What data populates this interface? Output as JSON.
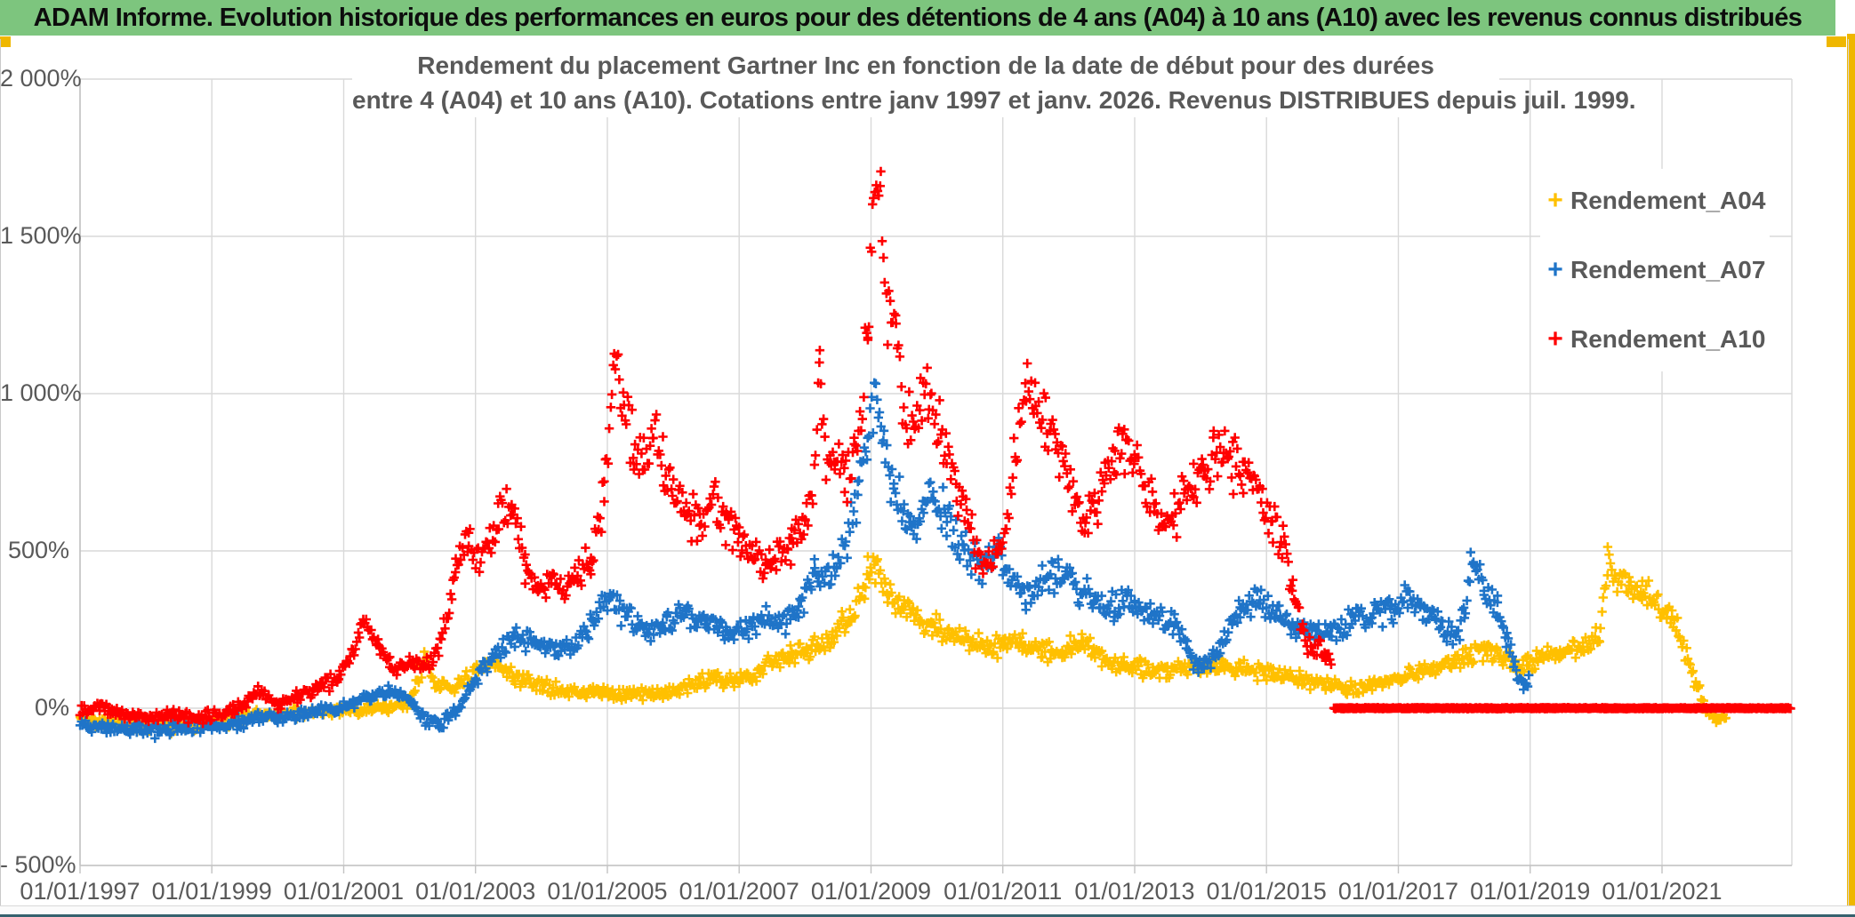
{
  "header": {
    "title": "ADAM Informe. Evolution historique des performances en euros pour des détentions de 4 ans (A04) à 10 ans (A10) avec les revenus connus distribués",
    "background_color": "#7DC57E"
  },
  "frame": {
    "accent_color": "#EFB700",
    "bottom_bar_color": "#35616E"
  },
  "chart": {
    "title_line1": "Rendement du placement Gartner Inc en fonction de la date de début pour des durées",
    "title_line2": "entre 4 (A04) et 10 ans (A10). Cotations entre janv 1997 et janv. 2026. Revenus DISTRIBUES depuis juil. 1999.",
    "legend": [
      {
        "label": "Rendement_A04",
        "color": "#FFC000"
      },
      {
        "label": "Rendement_A07",
        "color": "#1F74C8"
      },
      {
        "label": "Rendement_A10",
        "color": "#FF0000"
      }
    ]
  },
  "chart_data": {
    "type": "scatter",
    "marker": "plus",
    "grid": true,
    "legend_position": "right",
    "x_axis": {
      "min": 1997.0,
      "max": 2022.97,
      "tick_years": [
        1997,
        1999,
        2001,
        2003,
        2005,
        2007,
        2009,
        2011,
        2013,
        2015,
        2017,
        2019,
        2021
      ],
      "tick_labels": [
        "01/01/1997",
        "01/01/1999",
        "01/01/2001",
        "01/01/2003",
        "01/01/2005",
        "01/01/2007",
        "01/01/2009",
        "01/01/2011",
        "01/01/2013",
        "01/01/2015",
        "01/01/2017",
        "01/01/2019",
        "01/01/2021"
      ]
    },
    "y_axis": {
      "min": -500,
      "max": 2000,
      "tick_values": [
        2000,
        1500,
        1000,
        500,
        0,
        -500
      ],
      "tick_labels": [
        "2 000%",
        "1 500%",
        "1 000%",
        "500%",
        "0%",
        "- 500%"
      ]
    },
    "render_hints": {
      "step_years": 0.02,
      "flat_step_years": 0.01,
      "jitter_base": 10,
      "jitter_prop": 0.055,
      "seed": 42
    },
    "series": [
      {
        "name": "Rendement_A04",
        "color": "#FFC000",
        "anchors": [
          [
            1997.0,
            -30
          ],
          [
            1997.4,
            -45
          ],
          [
            1997.8,
            -55
          ],
          [
            1998.2,
            -60
          ],
          [
            1998.6,
            -55
          ],
          [
            1999.0,
            -45
          ],
          [
            1999.4,
            -35
          ],
          [
            1999.7,
            -15
          ],
          [
            2000.0,
            -25
          ],
          [
            2000.4,
            -15
          ],
          [
            2000.8,
            -10
          ],
          [
            2001.2,
            -5
          ],
          [
            2001.6,
            0
          ],
          [
            2002.0,
            15
          ],
          [
            2002.25,
            165,
            0.6
          ],
          [
            2002.4,
            60
          ],
          [
            2002.7,
            70
          ],
          [
            2003.0,
            115
          ],
          [
            2003.3,
            145
          ],
          [
            2003.6,
            95
          ],
          [
            2004.0,
            70
          ],
          [
            2004.4,
            55
          ],
          [
            2004.8,
            50
          ],
          [
            2005.2,
            48
          ],
          [
            2005.6,
            45
          ],
          [
            2006.0,
            55
          ],
          [
            2006.4,
            85
          ],
          [
            2006.8,
            90
          ],
          [
            2007.2,
            95
          ],
          [
            2007.5,
            150
          ],
          [
            2007.8,
            165
          ],
          [
            2008.1,
            185
          ],
          [
            2008.4,
            230
          ],
          [
            2008.7,
            300
          ],
          [
            2008.95,
            420
          ],
          [
            2009.08,
            465
          ],
          [
            2009.25,
            370
          ],
          [
            2009.5,
            320
          ],
          [
            2009.75,
            285
          ],
          [
            2010.0,
            260
          ],
          [
            2010.35,
            215
          ],
          [
            2010.7,
            200
          ],
          [
            2011.0,
            195
          ],
          [
            2011.3,
            215
          ],
          [
            2011.6,
            180
          ],
          [
            2011.9,
            185
          ],
          [
            2012.2,
            210
          ],
          [
            2012.5,
            160
          ],
          [
            2012.8,
            140
          ],
          [
            2013.1,
            125
          ],
          [
            2013.5,
            120
          ],
          [
            2013.9,
            135
          ],
          [
            2014.3,
            130
          ],
          [
            2014.7,
            125
          ],
          [
            2015.1,
            105
          ],
          [
            2015.5,
            90
          ],
          [
            2015.9,
            80
          ],
          [
            2016.2,
            60
          ],
          [
            2016.6,
            70
          ],
          [
            2017.0,
            95
          ],
          [
            2017.4,
            115
          ],
          [
            2017.8,
            145
          ],
          [
            2018.1,
            175
          ],
          [
            2018.35,
            190
          ],
          [
            2018.6,
            155
          ],
          [
            2018.85,
            135
          ],
          [
            2019.1,
            155
          ],
          [
            2019.45,
            175
          ],
          [
            2019.8,
            190
          ],
          [
            2020.05,
            230
          ],
          [
            2020.18,
            470,
            0.6
          ],
          [
            2020.32,
            390
          ],
          [
            2020.5,
            400
          ],
          [
            2020.7,
            370
          ],
          [
            2020.95,
            335
          ],
          [
            2021.15,
            300
          ],
          [
            2021.35,
            180
          ],
          [
            2021.55,
            60
          ],
          [
            2021.7,
            -10
          ],
          [
            2021.85,
            -30
          ],
          [
            2021.97,
            -35
          ]
        ]
      },
      {
        "name": "Rendement_A07",
        "color": "#1F74C8",
        "anchors": [
          [
            1997.0,
            -55
          ],
          [
            1997.4,
            -62
          ],
          [
            1997.8,
            -70
          ],
          [
            1998.2,
            -72
          ],
          [
            1998.6,
            -65
          ],
          [
            1999.0,
            -58
          ],
          [
            1999.4,
            -45
          ],
          [
            1999.7,
            -30
          ],
          [
            2000.0,
            -35
          ],
          [
            2000.4,
            -15
          ],
          [
            2000.8,
            0
          ],
          [
            2001.1,
            15
          ],
          [
            2001.4,
            40
          ],
          [
            2001.7,
            55
          ],
          [
            2002.0,
            30
          ],
          [
            2002.2,
            -35
          ],
          [
            2002.45,
            -60
          ],
          [
            2002.7,
            -10
          ],
          [
            2003.0,
            90
          ],
          [
            2003.3,
            175
          ],
          [
            2003.6,
            225
          ],
          [
            2003.9,
            215
          ],
          [
            2004.2,
            175
          ],
          [
            2004.5,
            200
          ],
          [
            2004.8,
            280
          ],
          [
            2005.05,
            355
          ],
          [
            2005.3,
            290
          ],
          [
            2005.6,
            250
          ],
          [
            2005.9,
            265
          ],
          [
            2006.2,
            295
          ],
          [
            2006.5,
            260
          ],
          [
            2006.8,
            245
          ],
          [
            2007.1,
            250
          ],
          [
            2007.35,
            290
          ],
          [
            2007.6,
            265
          ],
          [
            2007.9,
            310
          ],
          [
            2008.15,
            430
          ],
          [
            2008.4,
            420
          ],
          [
            2008.6,
            520
          ],
          [
            2008.8,
            680
          ],
          [
            2008.95,
            880
          ],
          [
            2009.05,
            1000,
            0.7
          ],
          [
            2009.2,
            840
          ],
          [
            2009.35,
            700
          ],
          [
            2009.5,
            610
          ],
          [
            2009.65,
            560
          ],
          [
            2009.8,
            640
          ],
          [
            2009.95,
            690
          ],
          [
            2010.15,
            590
          ],
          [
            2010.4,
            500
          ],
          [
            2010.65,
            450
          ],
          [
            2010.9,
            495
          ],
          [
            2011.1,
            430
          ],
          [
            2011.35,
            360
          ],
          [
            2011.6,
            400
          ],
          [
            2011.85,
            435
          ],
          [
            2012.1,
            375
          ],
          [
            2012.4,
            340
          ],
          [
            2012.7,
            320
          ],
          [
            2013.0,
            330
          ],
          [
            2013.3,
            300
          ],
          [
            2013.6,
            270
          ],
          [
            2013.85,
            160
          ],
          [
            2014.05,
            135
          ],
          [
            2014.3,
            200
          ],
          [
            2014.6,
            320
          ],
          [
            2014.9,
            345
          ],
          [
            2015.15,
            300
          ],
          [
            2015.45,
            260
          ],
          [
            2015.75,
            235
          ],
          [
            2016.0,
            255
          ],
          [
            2016.3,
            280
          ],
          [
            2016.6,
            300
          ],
          [
            2016.9,
            320
          ],
          [
            2017.15,
            345
          ],
          [
            2017.4,
            310
          ],
          [
            2017.65,
            255
          ],
          [
            2017.85,
            225
          ],
          [
            2018.0,
            295
          ],
          [
            2018.12,
            470,
            0.7
          ],
          [
            2018.3,
            395
          ],
          [
            2018.5,
            320
          ],
          [
            2018.65,
            220
          ],
          [
            2018.8,
            105
          ],
          [
            2018.92,
            75
          ],
          [
            2019.0,
            100
          ]
        ]
      },
      {
        "name": "Rendement_A10",
        "color": "#FF0000",
        "anchors": [
          [
            1997.0,
            -10
          ],
          [
            1997.3,
            5
          ],
          [
            1997.6,
            -15
          ],
          [
            1998.0,
            -28
          ],
          [
            1998.4,
            -18
          ],
          [
            1998.8,
            -32
          ],
          [
            1999.2,
            -12
          ],
          [
            1999.5,
            10
          ],
          [
            1999.7,
            55
          ],
          [
            2000.0,
            10
          ],
          [
            2000.3,
            35
          ],
          [
            2000.6,
            60
          ],
          [
            2000.9,
            95
          ],
          [
            2001.1,
            160
          ],
          [
            2001.3,
            290,
            0.7
          ],
          [
            2001.5,
            215
          ],
          [
            2001.7,
            140
          ],
          [
            2001.9,
            130
          ],
          [
            2002.1,
            145
          ],
          [
            2002.3,
            130
          ],
          [
            2002.5,
            230
          ],
          [
            2002.7,
            440
          ],
          [
            2002.9,
            545
          ],
          [
            2003.1,
            480
          ],
          [
            2003.35,
            600
          ],
          [
            2003.55,
            640
          ],
          [
            2003.75,
            455
          ],
          [
            2003.95,
            385
          ],
          [
            2004.15,
            420
          ],
          [
            2004.35,
            380
          ],
          [
            2004.55,
            420
          ],
          [
            2004.75,
            465
          ],
          [
            2004.95,
            680
          ],
          [
            2005.1,
            1110,
            0.7
          ],
          [
            2005.25,
            950
          ],
          [
            2005.4,
            855
          ],
          [
            2005.55,
            800
          ],
          [
            2005.7,
            865
          ],
          [
            2005.85,
            775
          ],
          [
            2006.0,
            695
          ],
          [
            2006.2,
            620
          ],
          [
            2006.4,
            585
          ],
          [
            2006.6,
            645
          ],
          [
            2006.8,
            600
          ],
          [
            2007.0,
            545
          ],
          [
            2007.2,
            485
          ],
          [
            2007.4,
            445
          ],
          [
            2007.6,
            480
          ],
          [
            2007.8,
            520
          ],
          [
            2008.0,
            565
          ],
          [
            2008.12,
            720
          ],
          [
            2008.22,
            1070,
            0.7
          ],
          [
            2008.32,
            760
          ],
          [
            2008.45,
            820
          ],
          [
            2008.6,
            705
          ],
          [
            2008.75,
            810
          ],
          [
            2008.87,
            950
          ],
          [
            2008.95,
            1250
          ],
          [
            2009.02,
            1560,
            0.8
          ],
          [
            2009.08,
            1720,
            0.8
          ],
          [
            2009.15,
            1580
          ],
          [
            2009.25,
            1310
          ],
          [
            2009.38,
            1170
          ],
          [
            2009.5,
            950
          ],
          [
            2009.62,
            900
          ],
          [
            2009.75,
            1000
          ],
          [
            2009.88,
            1040
          ],
          [
            2010.0,
            940
          ],
          [
            2010.15,
            800
          ],
          [
            2010.3,
            700
          ],
          [
            2010.45,
            610
          ],
          [
            2010.6,
            505
          ],
          [
            2010.75,
            455
          ],
          [
            2010.9,
            485
          ],
          [
            2011.05,
            590
          ],
          [
            2011.2,
            860
          ],
          [
            2011.35,
            1060,
            0.8
          ],
          [
            2011.5,
            950
          ],
          [
            2011.65,
            905
          ],
          [
            2011.8,
            845
          ],
          [
            2011.95,
            775
          ],
          [
            2012.1,
            690
          ],
          [
            2012.25,
            610
          ],
          [
            2012.4,
            640
          ],
          [
            2012.55,
            700
          ],
          [
            2012.7,
            790
          ],
          [
            2012.85,
            845
          ],
          [
            2013.0,
            795
          ],
          [
            2013.15,
            705
          ],
          [
            2013.3,
            630
          ],
          [
            2013.45,
            585
          ],
          [
            2013.6,
            615
          ],
          [
            2013.75,
            675
          ],
          [
            2013.9,
            715
          ],
          [
            2014.05,
            745
          ],
          [
            2014.2,
            795
          ],
          [
            2014.35,
            815
          ],
          [
            2014.5,
            780
          ],
          [
            2014.65,
            735
          ],
          [
            2014.8,
            705
          ],
          [
            2014.95,
            655
          ],
          [
            2015.1,
            600
          ],
          [
            2015.25,
            520
          ],
          [
            2015.4,
            370
          ],
          [
            2015.55,
            245
          ],
          [
            2015.68,
            185
          ],
          [
            2015.8,
            205
          ],
          [
            2015.9,
            165
          ],
          [
            2016.0,
            150
          ]
        ],
        "flat_zero_segment": {
          "from": 2016.02,
          "to": 2022.95,
          "value": 0,
          "jitter_scale": 0.12
        }
      }
    ]
  }
}
